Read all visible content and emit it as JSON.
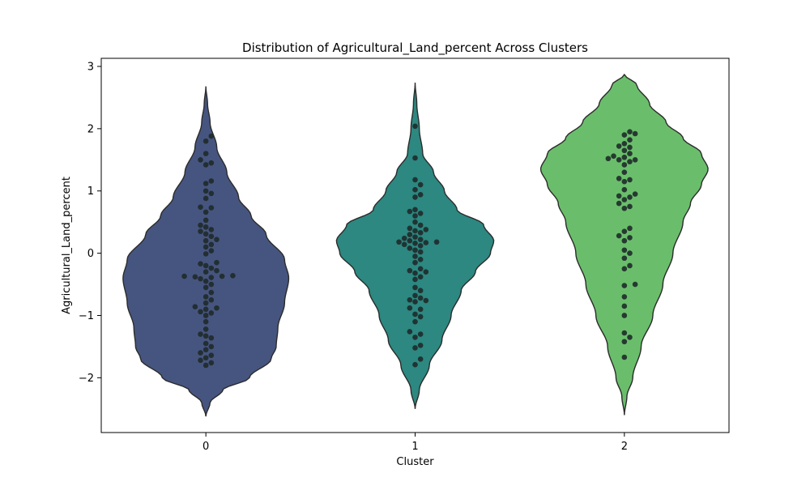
{
  "chart_data": {
    "type": "violin",
    "title": "Distribution of Agricultural_Land_percent Across Clusters",
    "xlabel": "Cluster",
    "ylabel": "Agricultural_Land_percent",
    "categories": [
      "0",
      "1",
      "2"
    ],
    "ylim": [
      -2.88,
      3.13
    ],
    "yticks": [
      -2,
      -1,
      0,
      1,
      2,
      3
    ],
    "ytick_labels": [
      "−2",
      "−1",
      "0",
      "1",
      "2",
      "3"
    ],
    "grid": false,
    "violin_colors": [
      "#46557f",
      "#2c8880",
      "#6abe6b"
    ],
    "point_color": "#1f2a2a",
    "violins": [
      {
        "cluster": "0",
        "ymin": -2.62,
        "ymax": 2.68,
        "profile": [
          [
            -2.62,
            0.0
          ],
          [
            -2.4,
            0.05
          ],
          [
            -2.2,
            0.2
          ],
          [
            -2.0,
            0.52
          ],
          [
            -1.7,
            0.78
          ],
          [
            -1.5,
            0.84
          ],
          [
            -1.2,
            0.86
          ],
          [
            -0.8,
            0.94
          ],
          [
            -0.4,
            0.99
          ],
          [
            -0.1,
            0.94
          ],
          [
            0.3,
            0.72
          ],
          [
            0.6,
            0.54
          ],
          [
            0.9,
            0.39
          ],
          [
            1.3,
            0.25
          ],
          [
            1.7,
            0.13
          ],
          [
            2.1,
            0.05
          ],
          [
            2.4,
            0.02
          ],
          [
            2.68,
            0.0
          ]
        ],
        "points": [
          1.88,
          1.8,
          1.6,
          1.5,
          1.45,
          1.42,
          1.16,
          1.12,
          1.0,
          0.96,
          0.88,
          0.74,
          0.73,
          0.66,
          0.53,
          0.45,
          0.42,
          0.38,
          0.35,
          0.31,
          0.27,
          0.22,
          0.2,
          0.14,
          0.1,
          0.04,
          -0.01,
          -0.15,
          -0.17,
          -0.2,
          -0.24,
          -0.28,
          -0.3,
          -0.36,
          -0.37,
          -0.37,
          -0.38,
          -0.39,
          -0.41,
          -0.45,
          -0.5,
          -0.55,
          -0.63,
          -0.7,
          -0.75,
          -0.8,
          -0.86,
          -0.88,
          -0.9,
          -0.94,
          -0.96,
          -1.0,
          -1.1,
          -1.22,
          -1.3,
          -1.33,
          -1.36,
          -1.45,
          -1.5,
          -1.55,
          -1.6,
          -1.64,
          -1.68,
          -1.72,
          -1.76,
          -1.8
        ]
      },
      {
        "cluster": "1",
        "ymin": -2.5,
        "ymax": 2.74,
        "profile": [
          [
            -2.5,
            0.0
          ],
          [
            -2.2,
            0.05
          ],
          [
            -1.8,
            0.17
          ],
          [
            -1.4,
            0.32
          ],
          [
            -1.0,
            0.43
          ],
          [
            -0.6,
            0.55
          ],
          [
            -0.3,
            0.72
          ],
          [
            0.0,
            0.9
          ],
          [
            0.2,
            0.94
          ],
          [
            0.45,
            0.82
          ],
          [
            0.7,
            0.5
          ],
          [
            1.0,
            0.35
          ],
          [
            1.3,
            0.22
          ],
          [
            1.6,
            0.09
          ],
          [
            2.0,
            0.05
          ],
          [
            2.4,
            0.02
          ],
          [
            2.74,
            0.0
          ]
        ],
        "points": [
          2.04,
          1.53,
          1.18,
          1.1,
          1.02,
          0.94,
          0.9,
          0.7,
          0.67,
          0.64,
          0.6,
          0.5,
          0.45,
          0.4,
          0.38,
          0.36,
          0.33,
          0.3,
          0.26,
          0.24,
          0.22,
          0.2,
          0.18,
          0.18,
          0.17,
          0.16,
          0.14,
          0.12,
          0.08,
          0.05,
          0.02,
          -0.05,
          -0.1,
          -0.15,
          -0.25,
          -0.28,
          -0.3,
          -0.32,
          -0.38,
          -0.42,
          -0.55,
          -0.6,
          -0.68,
          -0.72,
          -0.75,
          -0.76,
          -0.78,
          -0.88,
          -0.9,
          -0.98,
          -1.02,
          -1.1,
          -1.26,
          -1.3,
          -1.35,
          -1.48,
          -1.52,
          -1.7,
          -1.79
        ]
      },
      {
        "cluster": "2",
        "ymin": -2.6,
        "ymax": 2.87,
        "profile": [
          [
            -2.6,
            0.0
          ],
          [
            -2.3,
            0.03
          ],
          [
            -2.0,
            0.1
          ],
          [
            -1.5,
            0.2
          ],
          [
            -1.0,
            0.34
          ],
          [
            -0.5,
            0.46
          ],
          [
            0.0,
            0.58
          ],
          [
            0.5,
            0.7
          ],
          [
            0.8,
            0.79
          ],
          [
            1.1,
            0.92
          ],
          [
            1.35,
            1.0
          ],
          [
            1.6,
            0.92
          ],
          [
            1.85,
            0.7
          ],
          [
            2.1,
            0.5
          ],
          [
            2.4,
            0.3
          ],
          [
            2.7,
            0.15
          ],
          [
            2.87,
            0.0
          ]
        ],
        "points": [
          1.95,
          1.92,
          1.9,
          1.82,
          1.76,
          1.72,
          1.7,
          1.65,
          1.6,
          1.56,
          1.54,
          1.52,
          1.5,
          1.5,
          1.47,
          1.42,
          1.3,
          1.2,
          1.18,
          1.15,
          1.02,
          0.95,
          0.92,
          0.9,
          0.86,
          0.8,
          0.75,
          0.72,
          0.4,
          0.35,
          0.28,
          0.25,
          0.2,
          0.05,
          0.0,
          -0.08,
          -0.2,
          -0.25,
          -0.5,
          -0.52,
          -0.7,
          -0.85,
          -1.0,
          -1.28,
          -1.35,
          -1.42,
          -1.67
        ]
      }
    ]
  }
}
